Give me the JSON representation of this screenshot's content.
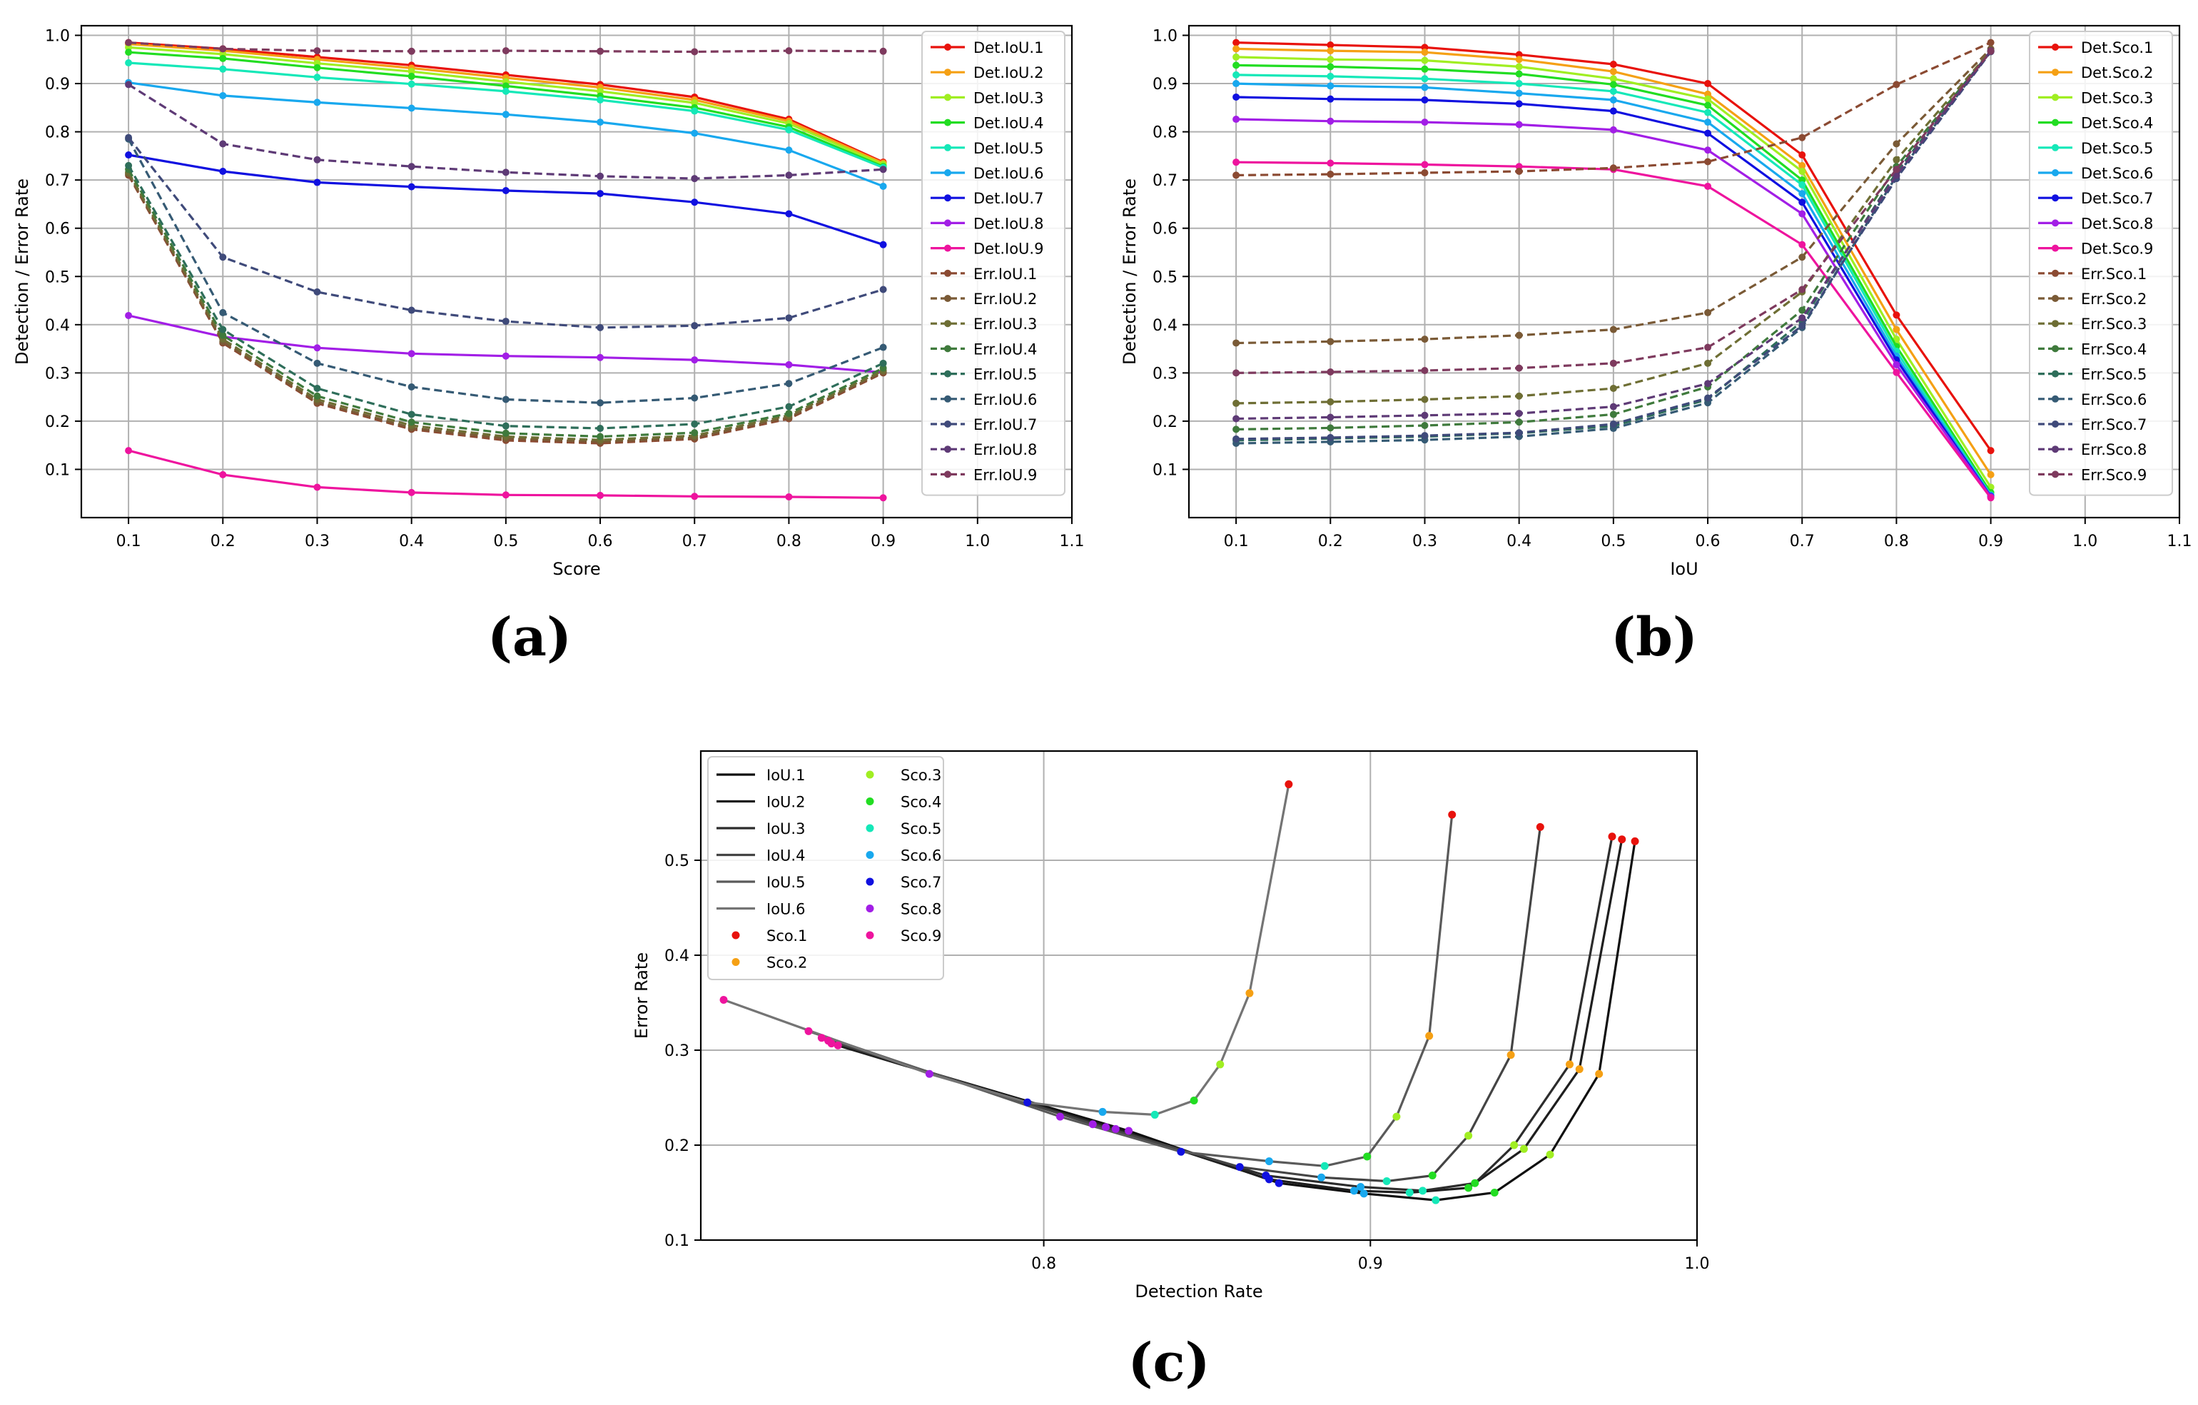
{
  "panels": [
    {
      "label": "(a)"
    },
    {
      "label": "(b)"
    },
    {
      "label": "(c)"
    }
  ],
  "chart_data": [
    {
      "type": "line",
      "xlabel": "Score",
      "ylabel": "Detection / Error Rate",
      "xlim": [
        0.05,
        1.1
      ],
      "ylim": [
        0.0,
        1.02
      ],
      "xticks": [
        0.1,
        0.2,
        0.3,
        0.4,
        0.5,
        0.6,
        0.7,
        0.8,
        0.9,
        1.0,
        1.1
      ],
      "xtick_labels": [
        "0.1",
        "0.2",
        "0.3",
        "0.4",
        "0.5",
        "0.6",
        "0.7",
        "0.8",
        "0.9",
        "1.0",
        "1.1"
      ],
      "yticks": [
        0.1,
        0.2,
        0.3,
        0.4,
        0.5,
        0.6,
        0.7,
        0.8,
        0.9,
        1.0
      ],
      "ytick_labels": [
        "0.1",
        "0.2",
        "0.3",
        "0.4",
        "0.5",
        "0.6",
        "0.7",
        "0.8",
        "0.9",
        "1.0"
      ],
      "grid": true,
      "legend_position": "top-right",
      "x": [
        0.1,
        0.2,
        0.3,
        0.4,
        0.5,
        0.6,
        0.7,
        0.8,
        0.9
      ],
      "series": [
        {
          "name": "Det.IoU.1",
          "color": "#e8120c",
          "dash": false,
          "values": [
            0.985,
            0.972,
            0.955,
            0.938,
            0.918,
            0.898,
            0.872,
            0.826,
            0.737
          ]
        },
        {
          "name": "Det.IoU.2",
          "color": "#f5a014",
          "dash": false,
          "values": [
            0.982,
            0.968,
            0.95,
            0.932,
            0.912,
            0.892,
            0.866,
            0.822,
            0.735
          ]
        },
        {
          "name": "Det.IoU.3",
          "color": "#a0ee22",
          "dash": false,
          "values": [
            0.975,
            0.961,
            0.942,
            0.925,
            0.904,
            0.884,
            0.86,
            0.817,
            0.732
          ]
        },
        {
          "name": "Det.IoU.4",
          "color": "#22dd22",
          "dash": false,
          "values": [
            0.965,
            0.952,
            0.933,
            0.915,
            0.895,
            0.874,
            0.85,
            0.81,
            0.728
          ]
        },
        {
          "name": "Det.IoU.5",
          "color": "#15e8b8",
          "dash": false,
          "values": [
            0.943,
            0.93,
            0.913,
            0.899,
            0.884,
            0.866,
            0.843,
            0.804,
            0.726
          ]
        },
        {
          "name": "Det.IoU.6",
          "color": "#18a8ee",
          "dash": false,
          "values": [
            0.902,
            0.875,
            0.861,
            0.849,
            0.836,
            0.82,
            0.797,
            0.762,
            0.687
          ]
        },
        {
          "name": "Det.IoU.7",
          "color": "#1010e0",
          "dash": false,
          "values": [
            0.752,
            0.718,
            0.695,
            0.686,
            0.678,
            0.672,
            0.654,
            0.63,
            0.566
          ]
        },
        {
          "name": "Det.IoU.8",
          "color": "#a21ee6",
          "dash": false,
          "values": [
            0.419,
            0.375,
            0.352,
            0.34,
            0.335,
            0.332,
            0.327,
            0.317,
            0.301
          ]
        },
        {
          "name": "Det.IoU.9",
          "color": "#ee149e",
          "dash": false,
          "values": [
            0.139,
            0.089,
            0.063,
            0.052,
            0.047,
            0.046,
            0.044,
            0.043,
            0.041
          ]
        },
        {
          "name": "Err.IoU.1",
          "color": "#8b4a32",
          "dash": true,
          "values": [
            0.71,
            0.362,
            0.237,
            0.183,
            0.16,
            0.154,
            0.163,
            0.205,
            0.3
          ]
        },
        {
          "name": "Err.IoU.2",
          "color": "#7a5a36",
          "dash": true,
          "values": [
            0.713,
            0.365,
            0.24,
            0.186,
            0.164,
            0.157,
            0.166,
            0.208,
            0.302
          ]
        },
        {
          "name": "Err.IoU.3",
          "color": "#6e6e34",
          "dash": true,
          "values": [
            0.716,
            0.37,
            0.245,
            0.191,
            0.168,
            0.161,
            0.17,
            0.212,
            0.305
          ]
        },
        {
          "name": "Err.IoU.4",
          "color": "#3f7a3c",
          "dash": true,
          "values": [
            0.722,
            0.378,
            0.252,
            0.198,
            0.175,
            0.168,
            0.176,
            0.216,
            0.31
          ]
        },
        {
          "name": "Err.IoU.5",
          "color": "#2e6e5a",
          "dash": true,
          "values": [
            0.73,
            0.39,
            0.268,
            0.214,
            0.19,
            0.185,
            0.194,
            0.23,
            0.32
          ]
        },
        {
          "name": "Err.IoU.6",
          "color": "#355a74",
          "dash": true,
          "values": [
            0.785,
            0.425,
            0.32,
            0.271,
            0.245,
            0.238,
            0.248,
            0.278,
            0.353
          ]
        },
        {
          "name": "Err.IoU.7",
          "color": "#3f4a7a",
          "dash": true,
          "values": [
            0.788,
            0.54,
            0.468,
            0.43,
            0.407,
            0.394,
            0.398,
            0.414,
            0.473
          ]
        },
        {
          "name": "Err.IoU.8",
          "color": "#5e3a76",
          "dash": true,
          "values": [
            0.898,
            0.775,
            0.742,
            0.728,
            0.716,
            0.708,
            0.703,
            0.71,
            0.722
          ]
        },
        {
          "name": "Err.IoU.9",
          "color": "#7e3a5e",
          "dash": true,
          "values": [
            0.985,
            0.972,
            0.968,
            0.967,
            0.968,
            0.967,
            0.966,
            0.968,
            0.967
          ]
        }
      ]
    },
    {
      "type": "line",
      "xlabel": "IoU",
      "ylabel": "Detection / Error Rate",
      "xlim": [
        0.05,
        1.1
      ],
      "ylim": [
        0.0,
        1.02
      ],
      "xticks": [
        0.1,
        0.2,
        0.3,
        0.4,
        0.5,
        0.6,
        0.7,
        0.8,
        0.9,
        1.0,
        1.1
      ],
      "xtick_labels": [
        "0.1",
        "0.2",
        "0.3",
        "0.4",
        "0.5",
        "0.6",
        "0.7",
        "0.8",
        "0.9",
        "1.0",
        "1.1"
      ],
      "yticks": [
        0.1,
        0.2,
        0.3,
        0.4,
        0.5,
        0.6,
        0.7,
        0.8,
        0.9,
        1.0
      ],
      "ytick_labels": [
        "0.1",
        "0.2",
        "0.3",
        "0.4",
        "0.5",
        "0.6",
        "0.7",
        "0.8",
        "0.9",
        "1.0"
      ],
      "grid": true,
      "legend_position": "top-right",
      "x": [
        0.1,
        0.2,
        0.3,
        0.4,
        0.5,
        0.6,
        0.7,
        0.8,
        0.9
      ],
      "series": [
        {
          "name": "Det.Sco.1",
          "color": "#e8120c",
          "dash": false,
          "values": [
            0.985,
            0.98,
            0.975,
            0.96,
            0.94,
            0.9,
            0.752,
            0.42,
            0.139
          ]
        },
        {
          "name": "Det.Sco.2",
          "color": "#f5a014",
          "dash": false,
          "values": [
            0.972,
            0.968,
            0.965,
            0.95,
            0.925,
            0.878,
            0.73,
            0.39,
            0.089
          ]
        },
        {
          "name": "Det.Sco.3",
          "color": "#a0ee22",
          "dash": false,
          "values": [
            0.955,
            0.95,
            0.948,
            0.935,
            0.91,
            0.868,
            0.718,
            0.37,
            0.063
          ]
        },
        {
          "name": "Det.Sco.4",
          "color": "#22dd22",
          "dash": false,
          "values": [
            0.938,
            0.935,
            0.93,
            0.92,
            0.898,
            0.855,
            0.7,
            0.355,
            0.052
          ]
        },
        {
          "name": "Det.Sco.5",
          "color": "#15e8b8",
          "dash": false,
          "values": [
            0.918,
            0.915,
            0.91,
            0.9,
            0.884,
            0.84,
            0.69,
            0.345,
            0.047
          ]
        },
        {
          "name": "Det.Sco.6",
          "color": "#18a8ee",
          "dash": false,
          "values": [
            0.9,
            0.895,
            0.892,
            0.88,
            0.866,
            0.82,
            0.672,
            0.335,
            0.046
          ]
        },
        {
          "name": "Det.Sco.7",
          "color": "#1010e0",
          "dash": false,
          "values": [
            0.872,
            0.868,
            0.866,
            0.858,
            0.843,
            0.797,
            0.654,
            0.327,
            0.044
          ]
        },
        {
          "name": "Det.Sco.8",
          "color": "#a21ee6",
          "dash": false,
          "values": [
            0.826,
            0.822,
            0.82,
            0.815,
            0.804,
            0.762,
            0.63,
            0.317,
            0.043
          ]
        },
        {
          "name": "Det.Sco.9",
          "color": "#ee149e",
          "dash": false,
          "values": [
            0.737,
            0.735,
            0.732,
            0.728,
            0.722,
            0.687,
            0.566,
            0.301,
            0.041
          ]
        },
        {
          "name": "Err.Sco.1",
          "color": "#8b4a32",
          "dash": true,
          "values": [
            0.71,
            0.712,
            0.715,
            0.718,
            0.725,
            0.738,
            0.788,
            0.898,
            0.985
          ]
        },
        {
          "name": "Err.Sco.2",
          "color": "#7a5a36",
          "dash": true,
          "values": [
            0.362,
            0.365,
            0.37,
            0.378,
            0.39,
            0.425,
            0.54,
            0.775,
            0.972
          ]
        },
        {
          "name": "Err.Sco.3",
          "color": "#6e6e34",
          "dash": true,
          "values": [
            0.237,
            0.24,
            0.245,
            0.252,
            0.268,
            0.32,
            0.468,
            0.742,
            0.968
          ]
        },
        {
          "name": "Err.Sco.4",
          "color": "#3f7a3c",
          "dash": true,
          "values": [
            0.183,
            0.186,
            0.191,
            0.198,
            0.214,
            0.271,
            0.43,
            0.728,
            0.967
          ]
        },
        {
          "name": "Err.Sco.5",
          "color": "#2e6e5a",
          "dash": true,
          "values": [
            0.16,
            0.164,
            0.168,
            0.175,
            0.19,
            0.245,
            0.407,
            0.716,
            0.968
          ]
        },
        {
          "name": "Err.Sco.6",
          "color": "#355a74",
          "dash": true,
          "values": [
            0.154,
            0.157,
            0.161,
            0.168,
            0.185,
            0.238,
            0.394,
            0.708,
            0.967
          ]
        },
        {
          "name": "Err.Sco.7",
          "color": "#3f4a7a",
          "dash": true,
          "values": [
            0.163,
            0.166,
            0.17,
            0.176,
            0.194,
            0.248,
            0.398,
            0.703,
            0.966
          ]
        },
        {
          "name": "Err.Sco.8",
          "color": "#5e3a76",
          "dash": true,
          "values": [
            0.205,
            0.208,
            0.212,
            0.216,
            0.23,
            0.278,
            0.414,
            0.71,
            0.968
          ]
        },
        {
          "name": "Err.Sco.9",
          "color": "#7e3a5e",
          "dash": true,
          "values": [
            0.3,
            0.302,
            0.305,
            0.31,
            0.32,
            0.353,
            0.473,
            0.722,
            0.967
          ]
        }
      ]
    },
    {
      "type": "line",
      "xlabel": "Detection Rate",
      "ylabel": "Error Rate",
      "xlim": [
        0.695,
        1.0
      ],
      "ylim": [
        0.1,
        0.615
      ],
      "xticks": [
        0.8,
        0.9,
        1.0
      ],
      "xtick_labels": [
        "0.8",
        "0.9",
        "1.0"
      ],
      "yticks": [
        0.1,
        0.2,
        0.3,
        0.4,
        0.5
      ],
      "ytick_labels": [
        "0.1",
        "0.2",
        "0.3",
        "0.4",
        "0.5"
      ],
      "grid": true,
      "legend_position": "top-left",
      "marker_colors": [
        "#e8120c",
        "#f5a014",
        "#a0ee22",
        "#22dd22",
        "#15e8b8",
        "#18a8ee",
        "#1010e0",
        "#a21ee6",
        "#ee149e"
      ],
      "series": [
        {
          "name": "IoU.1",
          "color": "#101010",
          "points": [
            [
              0.981,
              0.52
            ],
            [
              0.97,
              0.275
            ],
            [
              0.955,
              0.19
            ],
            [
              0.938,
              0.15
            ],
            [
              0.92,
              0.142
            ],
            [
              0.898,
              0.149
            ],
            [
              0.872,
              0.16
            ],
            [
              0.826,
              0.215
            ],
            [
              0.737,
              0.305
            ]
          ]
        },
        {
          "name": "IoU.2",
          "color": "#1e1e1e",
          "points": [
            [
              0.977,
              0.522
            ],
            [
              0.964,
              0.28
            ],
            [
              0.947,
              0.196
            ],
            [
              0.93,
              0.155
            ],
            [
              0.912,
              0.15
            ],
            [
              0.895,
              0.152
            ],
            [
              0.869,
              0.164
            ],
            [
              0.822,
              0.217
            ],
            [
              0.735,
              0.307
            ]
          ]
        },
        {
          "name": "IoU.3",
          "color": "#2c2c2c",
          "points": [
            [
              0.974,
              0.525
            ],
            [
              0.961,
              0.285
            ],
            [
              0.944,
              0.2
            ],
            [
              0.932,
              0.16
            ],
            [
              0.916,
              0.152
            ],
            [
              0.897,
              0.156
            ],
            [
              0.868,
              0.168
            ],
            [
              0.819,
              0.219
            ],
            [
              0.734,
              0.31
            ]
          ]
        },
        {
          "name": "IoU.4",
          "color": "#444444",
          "points": [
            [
              0.952,
              0.535
            ],
            [
              0.943,
              0.295
            ],
            [
              0.93,
              0.21
            ],
            [
              0.919,
              0.168
            ],
            [
              0.905,
              0.162
            ],
            [
              0.885,
              0.166
            ],
            [
              0.86,
              0.177
            ],
            [
              0.815,
              0.222
            ],
            [
              0.732,
              0.313
            ]
          ]
        },
        {
          "name": "IoU.5",
          "color": "#5a5a5a",
          "points": [
            [
              0.925,
              0.548
            ],
            [
              0.918,
              0.315
            ],
            [
              0.908,
              0.23
            ],
            [
              0.899,
              0.188
            ],
            [
              0.886,
              0.178
            ],
            [
              0.869,
              0.183
            ],
            [
              0.842,
              0.193
            ],
            [
              0.805,
              0.23
            ],
            [
              0.728,
              0.32
            ]
          ]
        },
        {
          "name": "IoU.6",
          "color": "#747474",
          "points": [
            [
              0.875,
              0.58
            ],
            [
              0.863,
              0.36
            ],
            [
              0.854,
              0.285
            ],
            [
              0.846,
              0.247
            ],
            [
              0.834,
              0.232
            ],
            [
              0.818,
              0.235
            ],
            [
              0.795,
              0.245
            ],
            [
              0.765,
              0.275
            ],
            [
              0.702,
              0.353
            ]
          ]
        }
      ],
      "scatter_series": [
        "Sco.1",
        "Sco.2",
        "Sco.3",
        "Sco.4",
        "Sco.5",
        "Sco.6",
        "Sco.7",
        "Sco.8",
        "Sco.9"
      ]
    }
  ]
}
